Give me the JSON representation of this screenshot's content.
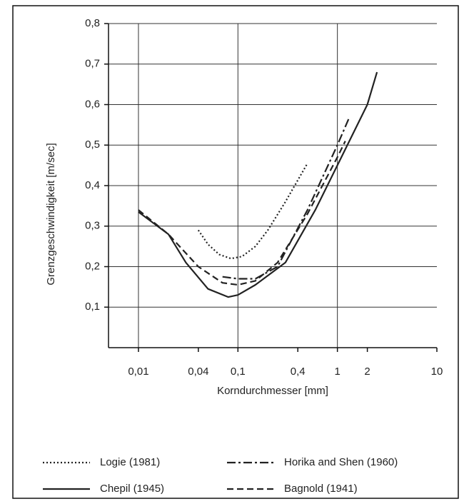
{
  "chart_data": {
    "type": "line",
    "xlabel": "Korndurchmesser [mm]",
    "ylabel": "Grenzgeschwindigkeit [m/sec]",
    "xscale": "log",
    "xlim": [
      0.005,
      10
    ],
    "ylim": [
      0,
      0.8
    ],
    "xticks": [
      {
        "value": 0.01,
        "label": "0,01"
      },
      {
        "value": 0.04,
        "label": "0,04"
      },
      {
        "value": 0.1,
        "label": "0,1"
      },
      {
        "value": 0.4,
        "label": "0,4"
      },
      1,
      2,
      10
    ],
    "yticks": [
      {
        "value": 0.1,
        "label": "0,1"
      },
      {
        "value": 0.2,
        "label": "0,2"
      },
      {
        "value": 0.3,
        "label": "0,3"
      },
      {
        "value": 0.4,
        "label": "0,4"
      },
      {
        "value": 0.5,
        "label": "0,5"
      },
      {
        "value": 0.6,
        "label": "0,6"
      },
      {
        "value": 0.7,
        "label": "0,7"
      },
      {
        "value": 0.8,
        "label": "0,8"
      }
    ],
    "xgrid": [
      0.01,
      0.1,
      1
    ],
    "grid": true,
    "legend": "bottom",
    "series": [
      {
        "name": "Logie (1981)",
        "color": "#222222",
        "linestyle": "dotted",
        "x": [
          0.04,
          0.05,
          0.065,
          0.085,
          0.11,
          0.15,
          0.2,
          0.3,
          0.5
        ],
        "values": [
          0.29,
          0.255,
          0.23,
          0.22,
          0.225,
          0.25,
          0.29,
          0.36,
          0.455
        ]
      },
      {
        "name": "Horika and Shen (1960)",
        "color": "#222222",
        "linestyle": "dashdot",
        "x": [
          0.07,
          0.1,
          0.15,
          0.25,
          0.5,
          1,
          1.3
        ],
        "values": [
          0.175,
          0.17,
          0.17,
          0.2,
          0.34,
          0.5,
          0.565
        ]
      },
      {
        "name": "Chepil (1945)",
        "color": "#222222",
        "linestyle": "solid",
        "x": [
          0.01,
          0.02,
          0.03,
          0.05,
          0.08,
          0.1,
          0.15,
          0.3,
          0.6,
          1,
          2,
          2.5
        ],
        "values": [
          0.335,
          0.28,
          0.21,
          0.145,
          0.125,
          0.13,
          0.155,
          0.21,
          0.34,
          0.45,
          0.6,
          0.68
        ]
      },
      {
        "name": "Bagnold (1941)",
        "color": "#222222",
        "linestyle": "dashed",
        "x": [
          0.01,
          0.02,
          0.04,
          0.07,
          0.1,
          0.15,
          0.25,
          0.5,
          1,
          1.2
        ],
        "values": [
          0.34,
          0.28,
          0.2,
          0.16,
          0.155,
          0.165,
          0.21,
          0.33,
          0.47,
          0.51
        ]
      }
    ]
  }
}
